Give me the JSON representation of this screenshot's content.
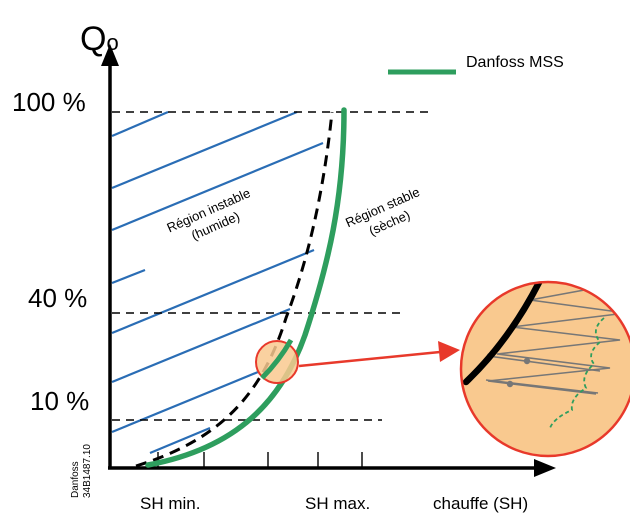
{
  "axis": {
    "y_title": "Q",
    "y_title_sub": "o",
    "x_title": "chauffe (SH)"
  },
  "y_ticks": [
    "100 %",
    "40 %",
    "10 %"
  ],
  "x_ticks": [
    "SH min.",
    "SH max."
  ],
  "legend": {
    "label": "Danfoss MSS",
    "color": "#2e9e5e"
  },
  "regions": {
    "unstable_line1": "Région instable",
    "unstable_line2": "(humide)",
    "stable_line1": "Région stable",
    "stable_line2": "(sèche)"
  },
  "watermark": {
    "line1": "Danfoss",
    "line2": "34B1487.10"
  },
  "colors": {
    "hatch": "#2a6db5",
    "mss_curve": "#2e9e5e",
    "zoom_fill": "#f9c98f",
    "zoom_border": "#e8392b",
    "arrow": "#e8392b",
    "axis": "#000000"
  }
}
